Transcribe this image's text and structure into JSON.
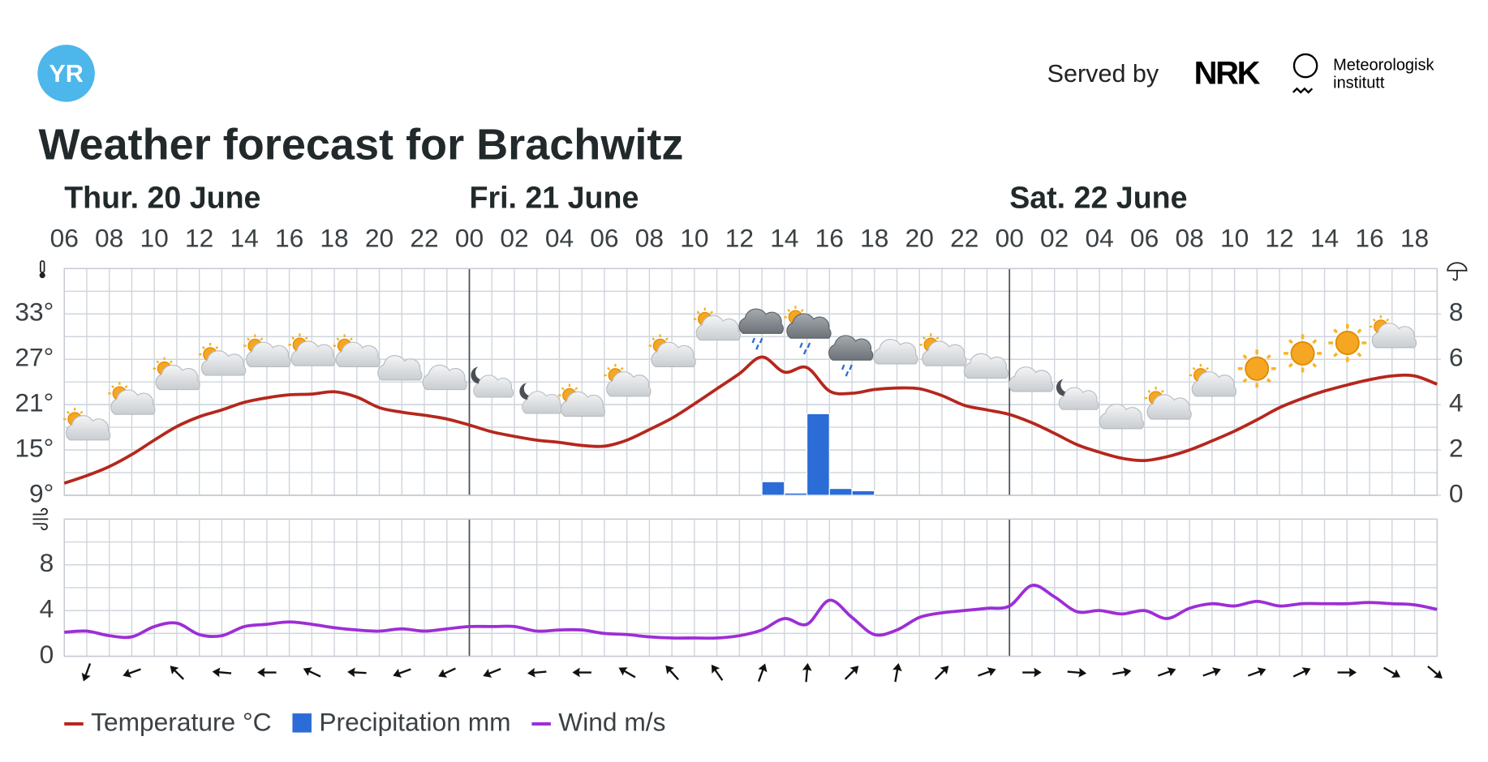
{
  "header": {
    "logo": "YR",
    "served_by": "Served by",
    "partner": "NRK",
    "institute": [
      "Meteorologisk",
      "institutt"
    ]
  },
  "chart_data": {
    "type": "line",
    "title": "Weather forecast for Brachwitz",
    "days": [
      "Thur. 20 June",
      "Fri. 21 June",
      "Sat. 22 June"
    ],
    "categories": [
      "06",
      null,
      "08",
      null,
      "10",
      null,
      "12",
      null,
      "14",
      null,
      "16",
      null,
      "18",
      null,
      "20",
      null,
      "22",
      null,
      "00",
      null,
      "02",
      null,
      "04",
      null,
      "06",
      null,
      "08",
      null,
      "10",
      null,
      "12",
      null,
      "14",
      null,
      "16",
      null,
      "18",
      null,
      "20",
      null,
      "22",
      null,
      "00",
      null,
      "02",
      null,
      "04",
      null,
      "06",
      null,
      "08",
      null,
      "10",
      null,
      "12",
      null,
      "14",
      null,
      "16",
      null,
      "18",
      null
    ],
    "series": [
      {
        "name": "Temperature °C",
        "color": "#b5271d",
        "values": [
          10.6,
          11.6,
          12.8,
          14.4,
          16.3,
          18.1,
          19.4,
          20.3,
          21.3,
          21.9,
          22.3,
          22.4,
          22.7,
          22.0,
          20.6,
          20.0,
          19.6,
          19.1,
          18.3,
          17.4,
          16.8,
          16.3,
          16.0,
          15.6,
          15.5,
          16.3,
          17.7,
          19.2,
          21.1,
          23.1,
          25.1,
          27.3,
          25.3,
          25.9,
          22.8,
          22.5,
          23.0,
          23.2,
          23.1,
          22.2,
          20.9,
          20.3,
          19.7,
          18.6,
          17.2,
          15.7,
          14.7,
          13.9,
          13.6,
          14.1,
          15.0,
          16.2,
          17.5,
          19.0,
          20.6,
          21.8,
          22.8,
          23.6,
          24.3,
          24.8,
          24.8,
          23.7
        ]
      },
      {
        "name": "Precipitation mm",
        "color": "#2b6cd6",
        "type": "bar",
        "axis": "y2",
        "values": [
          0,
          0,
          0,
          0,
          0,
          0,
          0,
          0,
          0,
          0,
          0,
          0,
          0,
          0,
          0,
          0,
          0,
          0,
          0,
          0,
          0,
          0,
          0,
          0,
          0,
          0,
          0,
          0,
          0,
          0,
          0,
          0.6,
          0.1,
          3.6,
          0.3,
          0.2,
          0,
          0,
          0,
          0,
          0,
          0,
          0,
          0,
          0,
          0,
          0,
          0,
          0,
          0,
          0,
          0,
          0,
          0,
          0,
          0,
          0,
          0,
          0,
          0,
          0,
          0
        ]
      },
      {
        "name": "Wind m/s",
        "color": "#9d2ed6",
        "axis": "wind",
        "values": [
          2.1,
          2.2,
          1.8,
          1.7,
          2.6,
          2.9,
          1.9,
          1.8,
          2.6,
          2.8,
          3.0,
          2.8,
          2.5,
          2.3,
          2.2,
          2.4,
          2.2,
          2.4,
          2.6,
          2.6,
          2.6,
          2.2,
          2.3,
          2.3,
          2.0,
          1.9,
          1.7,
          1.6,
          1.6,
          1.6,
          1.8,
          2.3,
          3.3,
          2.8,
          4.9,
          3.4,
          1.9,
          2.3,
          3.4,
          3.8,
          4.0,
          4.2,
          4.4,
          6.2,
          5.2,
          3.9,
          4.0,
          3.7,
          4.0,
          3.3,
          4.2,
          4.6,
          4.4,
          4.8,
          4.4,
          4.6,
          4.6,
          4.6,
          4.7,
          4.6,
          4.5,
          4.1
        ]
      }
    ],
    "ylim": [
      9,
      39
    ],
    "yticks": [
      {
        "value": 9,
        "label": "9°"
      },
      {
        "value": 15,
        "label": "15°"
      },
      {
        "value": 21,
        "label": "21°"
      },
      {
        "value": 27,
        "label": "27°"
      },
      {
        "value": 33,
        "label": "33°"
      }
    ],
    "y2lim": [
      0,
      10
    ],
    "y2ticks": [
      0,
      2,
      4,
      6,
      8
    ],
    "wind_ylim": [
      0,
      12
    ],
    "wind_yticks": [
      0,
      4,
      8
    ],
    "grid": true
  }
}
